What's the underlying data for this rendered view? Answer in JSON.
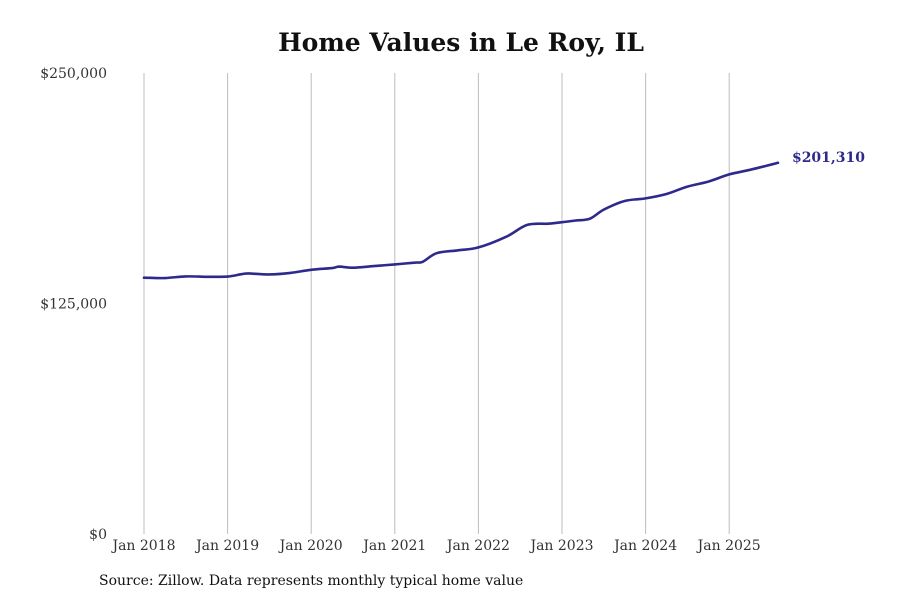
{
  "source_note": "Source: Zillow. Data represents monthly typical home value",
  "colors": {
    "line": "#2e2a8c",
    "grid": "#bdbdbd",
    "text": "#333333"
  },
  "chart_data": {
    "type": "line",
    "title": "Home Values in Le Roy, IL",
    "xlabel": "",
    "ylabel": "",
    "ylim": [
      0,
      250000
    ],
    "yticks": [
      0,
      125000,
      250000
    ],
    "ytick_labels": [
      "$0",
      "$125,000",
      "$250,000"
    ],
    "xticks": [
      "2018-01",
      "2019-01",
      "2020-01",
      "2021-01",
      "2022-01",
      "2023-01",
      "2024-01",
      "2025-01"
    ],
    "xtick_labels": [
      "Jan 2018",
      "Jan 2019",
      "Jan 2020",
      "Jan 2021",
      "Jan 2022",
      "Jan 2023",
      "Jan 2024",
      "Jan 2025"
    ],
    "grid": "vertical",
    "end_label": "$201,310",
    "series": [
      {
        "x": [
          "2018-01",
          "2018-04",
          "2018-07",
          "2018-10",
          "2019-01",
          "2019-03",
          "2019-04",
          "2019-07",
          "2019-10",
          "2020-01",
          "2020-04",
          "2020-05",
          "2020-07",
          "2020-10",
          "2021-01",
          "2021-04",
          "2021-05",
          "2021-07",
          "2021-10",
          "2022-01",
          "2022-05",
          "2022-08",
          "2022-11",
          "2023-01",
          "2023-03",
          "2023-05",
          "2023-07",
          "2023-10",
          "2024-01",
          "2024-04",
          "2024-07",
          "2024-10",
          "2025-01",
          "2025-04",
          "2025-08"
        ],
        "values": [
          139000,
          138800,
          139700,
          139500,
          139600,
          140900,
          141300,
          140800,
          141600,
          143300,
          144200,
          145000,
          144400,
          145300,
          146200,
          147200,
          147600,
          152300,
          153800,
          155400,
          161200,
          167600,
          168300,
          169100,
          170000,
          171000,
          175900,
          180600,
          182000,
          184400,
          188400,
          191100,
          195000,
          197500,
          201310
        ]
      }
    ]
  }
}
